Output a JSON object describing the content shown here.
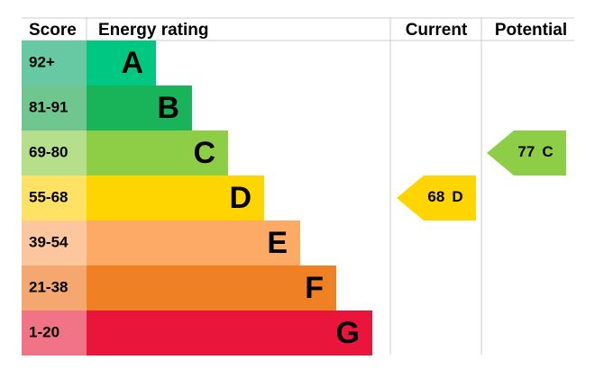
{
  "header": {
    "score": "Score",
    "rating": "Energy rating",
    "current": "Current",
    "potential": "Potential"
  },
  "bands": [
    {
      "score": "92+",
      "letter": "A",
      "color": "#00c781",
      "score_color": "#66c9a3"
    },
    {
      "score": "81-91",
      "letter": "B",
      "color": "#19b459",
      "score_color": "#6fc68f"
    },
    {
      "score": "69-80",
      "letter": "C",
      "color": "#8dce46",
      "score_color": "#b6df8c"
    },
    {
      "score": "55-68",
      "letter": "D",
      "color": "#ffd500",
      "score_color": "#ffe264"
    },
    {
      "score": "39-54",
      "letter": "E",
      "color": "#fcaa65",
      "score_color": "#fdc79d"
    },
    {
      "score": "21-38",
      "letter": "F",
      "color": "#ef8023",
      "score_color": "#f4a76e"
    },
    {
      "score": "1-20",
      "letter": "G",
      "color": "#e9153b",
      "score_color": "#f07486"
    }
  ],
  "current": {
    "value": 68,
    "letter": "D"
  },
  "potential": {
    "value": 77,
    "letter": "C"
  }
}
